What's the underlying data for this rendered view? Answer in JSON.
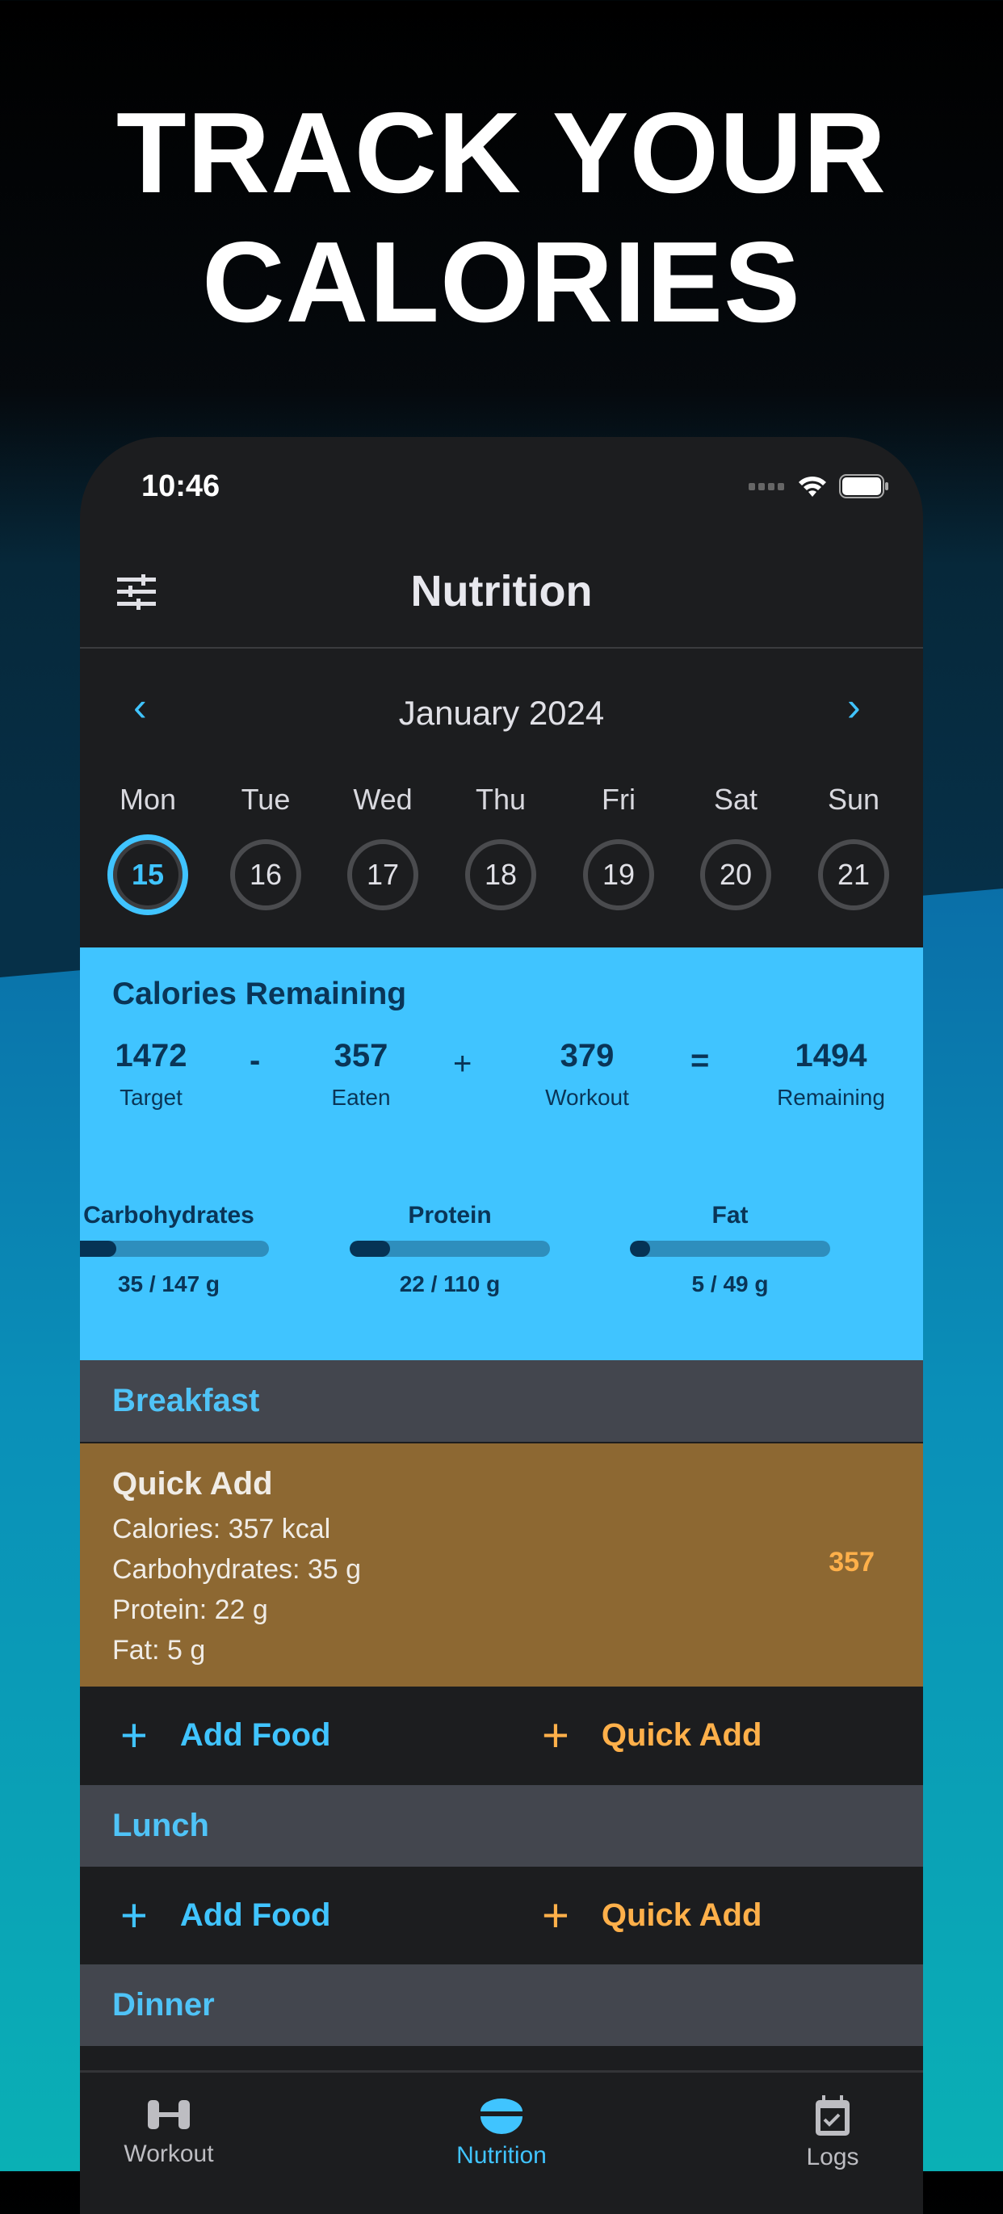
{
  "headline": {
    "line1": "TRACK YOUR",
    "line2": "CALORIES"
  },
  "status": {
    "time": "10:46"
  },
  "header": {
    "title": "Nutrition",
    "filter_icon": "sliders-icon"
  },
  "calendar": {
    "month": "January 2024",
    "days": [
      {
        "name": "Mon",
        "date": "15",
        "selected": true
      },
      {
        "name": "Tue",
        "date": "16"
      },
      {
        "name": "Wed",
        "date": "17"
      },
      {
        "name": "Thu",
        "date": "18"
      },
      {
        "name": "Fri",
        "date": "19"
      },
      {
        "name": "Sat",
        "date": "20"
      },
      {
        "name": "Sun",
        "date": "21"
      }
    ]
  },
  "calories": {
    "title": "Calories Remaining",
    "target": "1472",
    "target_label": "Target",
    "minus": "-",
    "eaten": "357",
    "eaten_label": "Eaten",
    "plus": "+",
    "workout": "379",
    "workout_label": "Workout",
    "equals": "=",
    "remaining": "1494",
    "remaining_label": "Remaining",
    "macros": [
      {
        "name": "Carbohydrates",
        "value": "35 / 147 g",
        "fraction": 0.238
      },
      {
        "name": "Protein",
        "value": "22 / 110 g",
        "fraction": 0.2
      },
      {
        "name": "Fat",
        "value": "5 / 49 g",
        "fraction": 0.102
      }
    ]
  },
  "meals": {
    "breakfast": {
      "title": "Breakfast",
      "item": {
        "name": "Quick Add",
        "lines": [
          "Calories: 357 kcal",
          "Carbohydrates: 35 g",
          "Protein: 22 g",
          "Fat: 5 g"
        ],
        "kcal": "357"
      }
    },
    "lunch": {
      "title": "Lunch"
    },
    "dinner": {
      "title": "Dinner"
    },
    "add_food": "Add Food",
    "quick_add": "Quick Add",
    "plus": "+"
  },
  "tabs": [
    {
      "label": "Workout",
      "icon": "dumbbell-icon"
    },
    {
      "label": "Nutrition",
      "icon": "food-bowl-icon",
      "active": true
    },
    {
      "label": "Logs",
      "icon": "calendar-check-icon"
    }
  ],
  "colors": {
    "accent": "#40c4ff",
    "quick_add": "#ffb04a",
    "item_bg": "#8d6832"
  }
}
